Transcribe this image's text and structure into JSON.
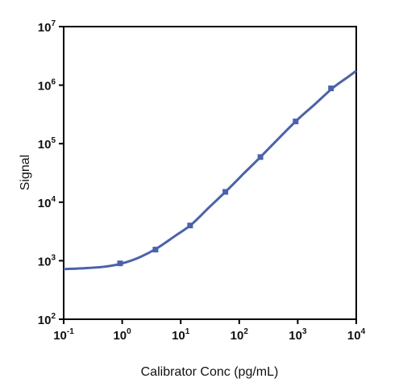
{
  "chart_data": {
    "type": "line",
    "title": "",
    "xlabel": "Calibrator Conc (pg/mL)",
    "ylabel": "Signal",
    "xscale": "log",
    "yscale": "log",
    "xlim": [
      0.1,
      10000
    ],
    "ylim": [
      100,
      10000000
    ],
    "x_ticks": [
      {
        "base": "10",
        "exp": "-1"
      },
      {
        "base": "10",
        "exp": "0"
      },
      {
        "base": "10",
        "exp": "1"
      },
      {
        "base": "10",
        "exp": "2"
      },
      {
        "base": "10",
        "exp": "3"
      },
      {
        "base": "10",
        "exp": "4"
      }
    ],
    "y_ticks": [
      {
        "base": "10",
        "exp": "2"
      },
      {
        "base": "10",
        "exp": "3"
      },
      {
        "base": "10",
        "exp": "4"
      },
      {
        "base": "10",
        "exp": "5"
      },
      {
        "base": "10",
        "exp": "6"
      },
      {
        "base": "10",
        "exp": "7"
      }
    ],
    "grid": false,
    "legend": "none",
    "series": [
      {
        "color": "#4a62ad",
        "points": [
          {
            "x": 0.92,
            "y": 900
          },
          {
            "x": 3.7,
            "y": 1550
          },
          {
            "x": 14.5,
            "y": 4000
          },
          {
            "x": 58,
            "y": 15000
          },
          {
            "x": 230,
            "y": 59000
          },
          {
            "x": 920,
            "y": 240000
          },
          {
            "x": 3700,
            "y": 880000
          }
        ],
        "fit_curve": [
          {
            "x": 0.1,
            "y": 720
          },
          {
            "x": 0.2,
            "y": 740
          },
          {
            "x": 0.5,
            "y": 790
          },
          {
            "x": 1,
            "y": 900
          },
          {
            "x": 2,
            "y": 1150
          },
          {
            "x": 4,
            "y": 1650
          },
          {
            "x": 8,
            "y": 2650
          },
          {
            "x": 15,
            "y": 4100
          },
          {
            "x": 30,
            "y": 8000
          },
          {
            "x": 60,
            "y": 15500
          },
          {
            "x": 120,
            "y": 31000
          },
          {
            "x": 230,
            "y": 59000
          },
          {
            "x": 500,
            "y": 130000
          },
          {
            "x": 1000,
            "y": 260000
          },
          {
            "x": 2000,
            "y": 480000
          },
          {
            "x": 4000,
            "y": 900000
          },
          {
            "x": 7000,
            "y": 1350000
          },
          {
            "x": 10000,
            "y": 1750000
          }
        ]
      }
    ]
  }
}
